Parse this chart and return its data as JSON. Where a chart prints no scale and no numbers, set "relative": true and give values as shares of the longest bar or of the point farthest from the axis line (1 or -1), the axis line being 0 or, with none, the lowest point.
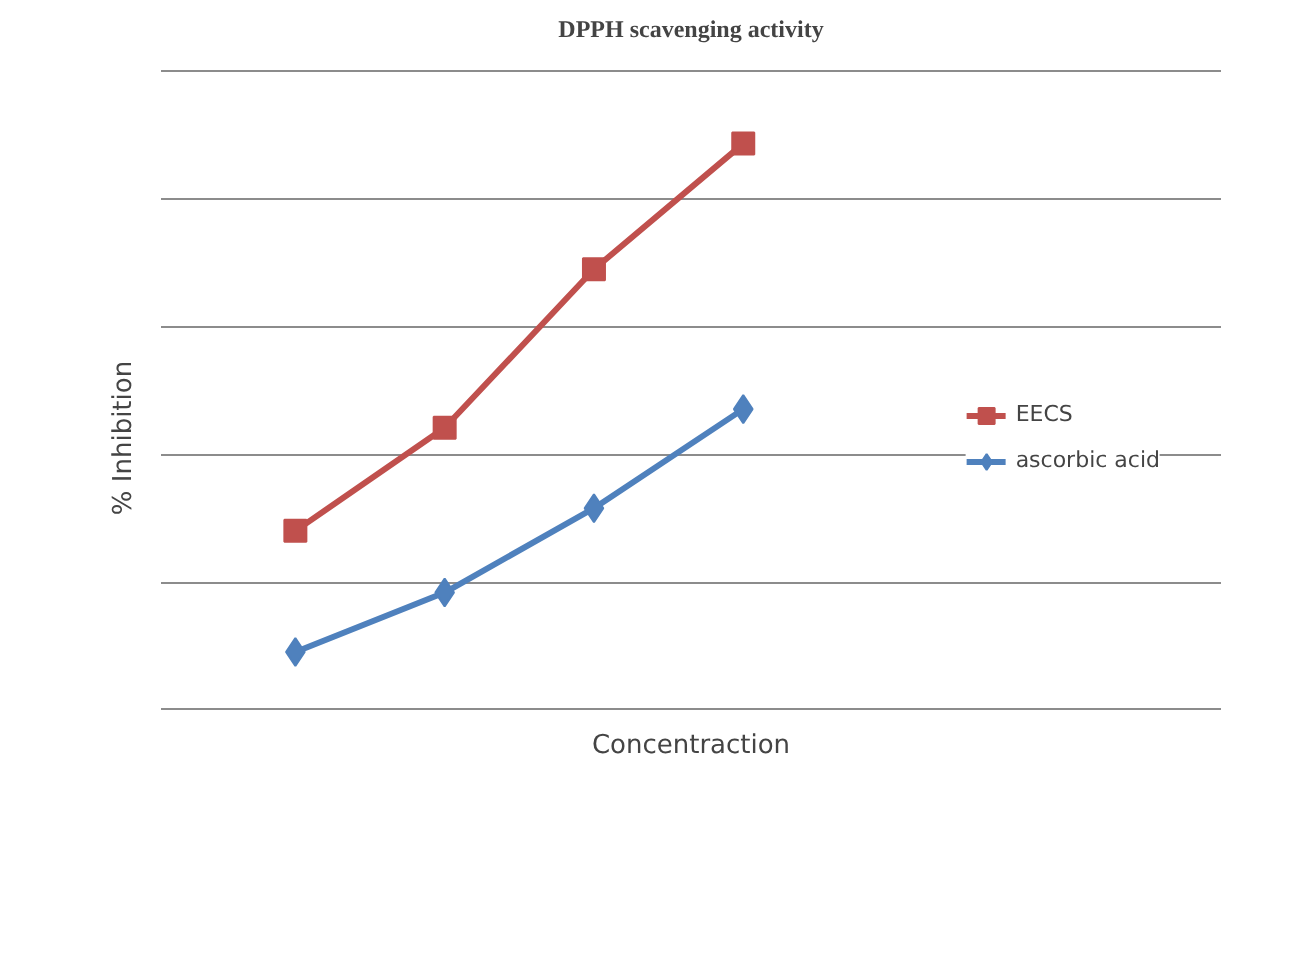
{
  "chart_data": {
    "type": "line",
    "title": "DPPH scavenging activity",
    "xlabel": "Concentraction",
    "ylabel": "% Inhibition",
    "categories": [
      null,
      null,
      null,
      null
    ],
    "relative": true,
    "grid": "y",
    "legend": "right",
    "line_style": "solid",
    "series": [
      {
        "name": "EECS",
        "color": "#c0504d",
        "marker": "square",
        "values": [
          0.316,
          0.498,
          0.778,
          1.0
        ]
      },
      {
        "name": "ascorbic acid",
        "color": "#4f81bd",
        "marker": "diamond",
        "values": [
          0.102,
          0.207,
          0.356,
          0.531
        ]
      }
    ]
  }
}
